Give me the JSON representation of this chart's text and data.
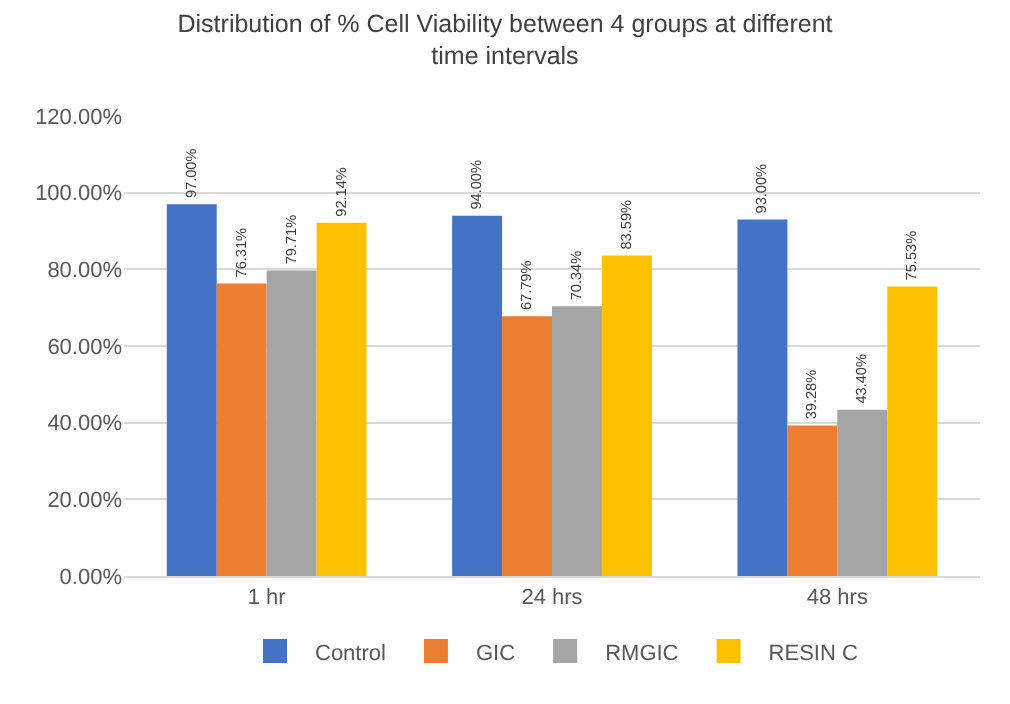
{
  "chart_data": {
    "type": "bar",
    "title": "Distribution of % Cell Viability between 4 groups at different time intervals",
    "categories": [
      "1 hr",
      "24 hrs",
      "48 hrs"
    ],
    "series": [
      {
        "name": "Control",
        "color": "#4472c4",
        "values": [
          97,
          94,
          93
        ],
        "value_labels": [
          "97.00%",
          "94.00%",
          "93.00%"
        ]
      },
      {
        "name": "GIC",
        "color": "#ed7d31",
        "values": [
          76.31,
          67.79,
          39.28
        ],
        "value_labels": [
          "76.31%",
          "67.79%",
          "39.28%"
        ]
      },
      {
        "name": "RMGIC",
        "color": "#a5a5a5",
        "values": [
          79.71,
          70.34,
          43.4
        ],
        "value_labels": [
          "79.71%",
          "70.34%",
          "43.40%"
        ]
      },
      {
        "name": "RESIN C",
        "color": "#ffc000",
        "values": [
          92.14,
          83.59,
          75.53
        ],
        "value_labels": [
          "92.14%",
          "83.59%",
          "75.53%"
        ]
      }
    ],
    "ylim": [
      0,
      120
    ],
    "yticks": [
      {
        "value": 0,
        "label": "0.00%"
      },
      {
        "value": 20,
        "label": "20.00%"
      },
      {
        "value": 40,
        "label": "40.00%"
      },
      {
        "value": 60,
        "label": "60.00%"
      },
      {
        "value": 80,
        "label": "80.00%"
      },
      {
        "value": 100,
        "label": "100.00%"
      },
      {
        "value": 120,
        "label": "120.00%"
      }
    ],
    "grid": "y",
    "legend": "bottom"
  }
}
